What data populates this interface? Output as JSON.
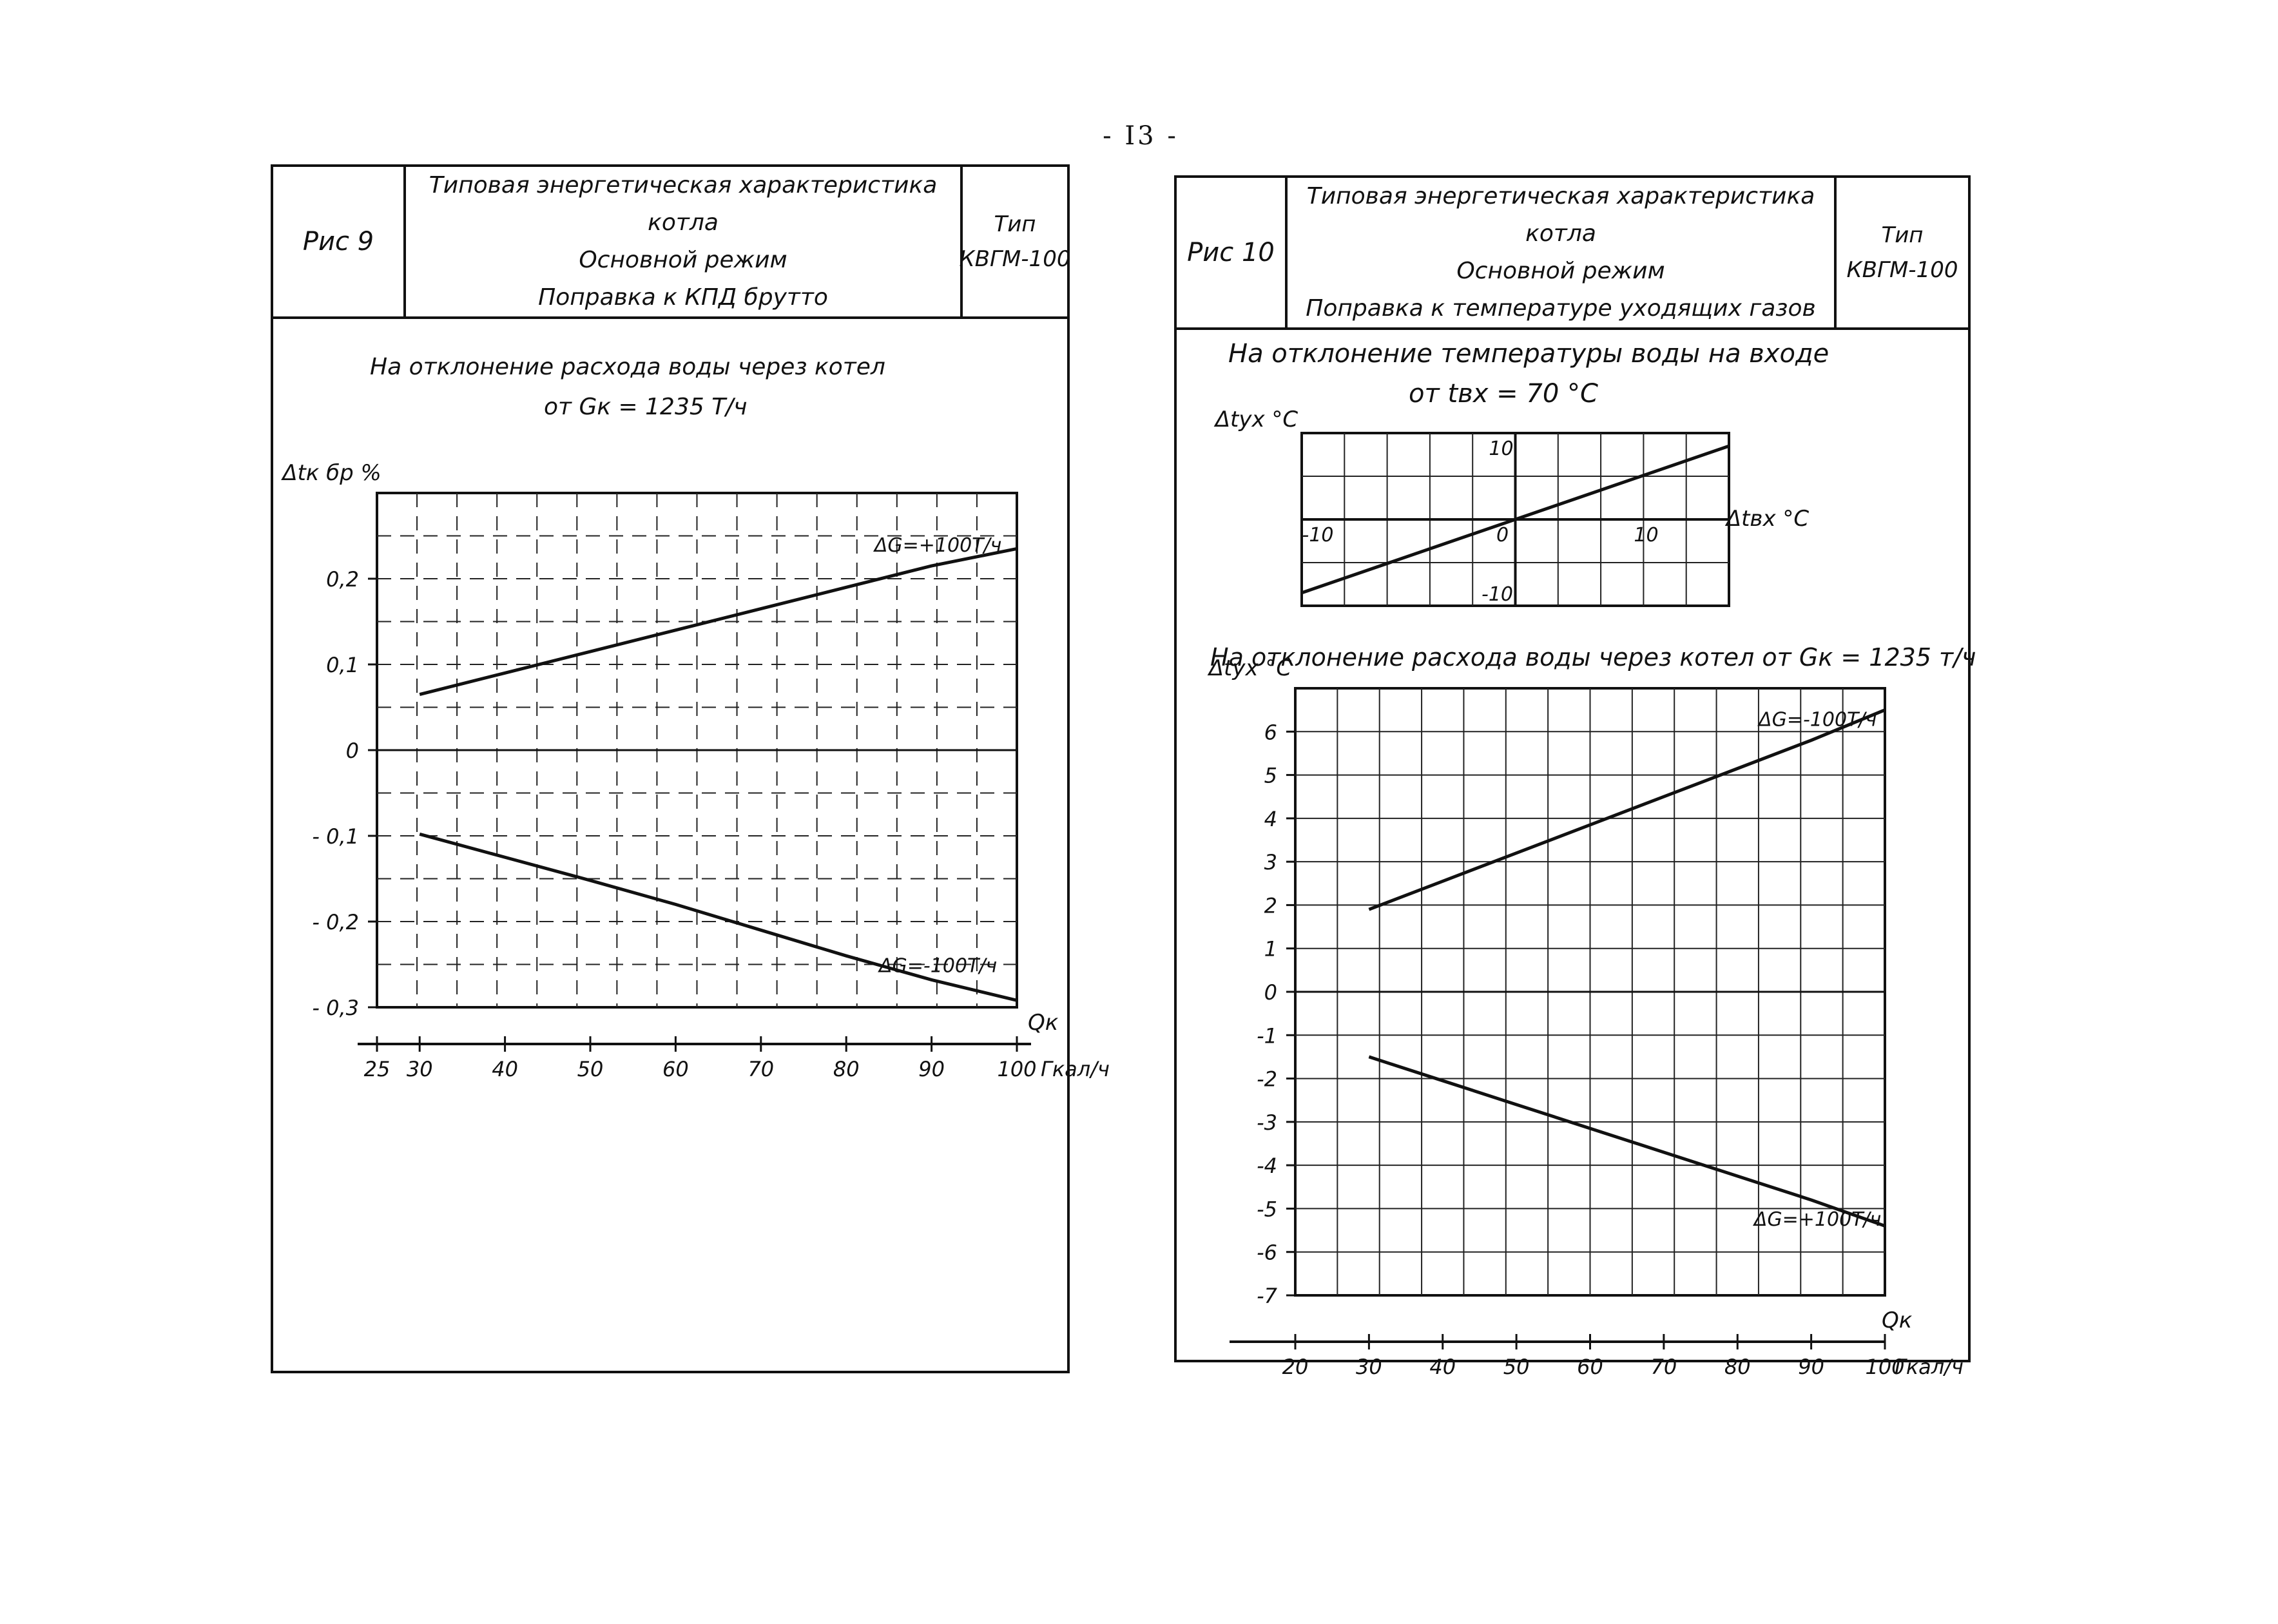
{
  "page_number": "- I3 -",
  "left": {
    "fig": "Рис 9",
    "title_lines": [
      "Типовая энергетическая характеристика котла",
      "Основной режим",
      "Поправка к КПД брутто"
    ],
    "type_lines": [
      "Тип",
      "КВГМ-100"
    ],
    "caption_lines": [
      "На отклонение расхода воды через котел",
      "от Gк = 1235 Т/ч"
    ]
  },
  "right": {
    "fig": "Рис 10",
    "title_lines": [
      "Типовая энергетическая характеристика котла",
      "Основной режим",
      "Поправка к температуре уходящих газов"
    ],
    "type_lines": [
      "Тип",
      "КВГМ-100"
    ],
    "caption_top_lines": [
      "На отклонение температуры воды на входе",
      "от tвх = 70 °С"
    ],
    "caption_bottom": "На отклонение расхода воды через котел от Gк = 1235 т/ч"
  },
  "chart_data": [
    {
      "type": "line",
      "ylabel": "Δtк бр %",
      "xlabel": "Qк",
      "x_unit": "100 Гкал/ч",
      "xlim": [
        25,
        100
      ],
      "ylim": [
        -0.3,
        0.3
      ],
      "x_ticks": [
        "25",
        "30",
        "40",
        "50",
        "60",
        "70",
        "80",
        "90",
        "100"
      ],
      "y_ticks": [
        "0,2",
        "0,1",
        "0",
        "- 0,1",
        "- 0,2",
        "- 0,3"
      ],
      "series": [
        {
          "name": "ΔG=+100Т/ч",
          "x": [
            30,
            40,
            50,
            60,
            70,
            80,
            90,
            100
          ],
          "y": [
            0.065,
            0.09,
            0.115,
            0.14,
            0.165,
            0.19,
            0.215,
            0.235
          ]
        },
        {
          "name": "ΔG=-100Т/ч",
          "x": [
            30,
            40,
            50,
            60,
            70,
            80,
            90,
            100
          ],
          "y": [
            -0.098,
            -0.125,
            -0.152,
            -0.18,
            -0.21,
            -0.24,
            -0.268,
            -0.292
          ]
        }
      ]
    },
    {
      "type": "line",
      "ylabel": "Δtух °С",
      "xlabel": "Δtвх °С",
      "xlim": [
        -15,
        15
      ],
      "ylim": [
        -10,
        10
      ],
      "x_ticks": [
        "-10",
        "0",
        "10"
      ],
      "y_ticks": [
        "10",
        "-10"
      ],
      "series": [
        {
          "x": [
            -15,
            15
          ],
          "y": [
            -8.5,
            8.5
          ]
        }
      ]
    },
    {
      "type": "line",
      "ylabel": "Δtух °С",
      "xlabel": "Qк",
      "x_unit": "100 Гкал/ч",
      "xlim": [
        20,
        100
      ],
      "ylim": [
        -7,
        7
      ],
      "x_ticks": [
        "20",
        "30",
        "40",
        "50",
        "60",
        "70",
        "80",
        "90",
        "100"
      ],
      "y_ticks": [
        "6",
        "5",
        "4",
        "3",
        "2",
        "1",
        "0",
        "-1",
        "-2",
        "-3",
        "-4",
        "-5",
        "-6",
        "-7"
      ],
      "series": [
        {
          "name": "ΔG=-100Т/ч",
          "x": [
            30,
            40,
            50,
            60,
            70,
            80,
            90,
            100
          ],
          "y": [
            1.9,
            2.55,
            3.2,
            3.85,
            4.5,
            5.15,
            5.8,
            6.5
          ]
        },
        {
          "name": "ΔG=+100Т/ч",
          "x": [
            30,
            40,
            50,
            60,
            70,
            80,
            90,
            100
          ],
          "y": [
            -1.5,
            -2.05,
            -2.6,
            -3.15,
            -3.7,
            -4.25,
            -4.8,
            -5.4
          ]
        }
      ]
    }
  ]
}
